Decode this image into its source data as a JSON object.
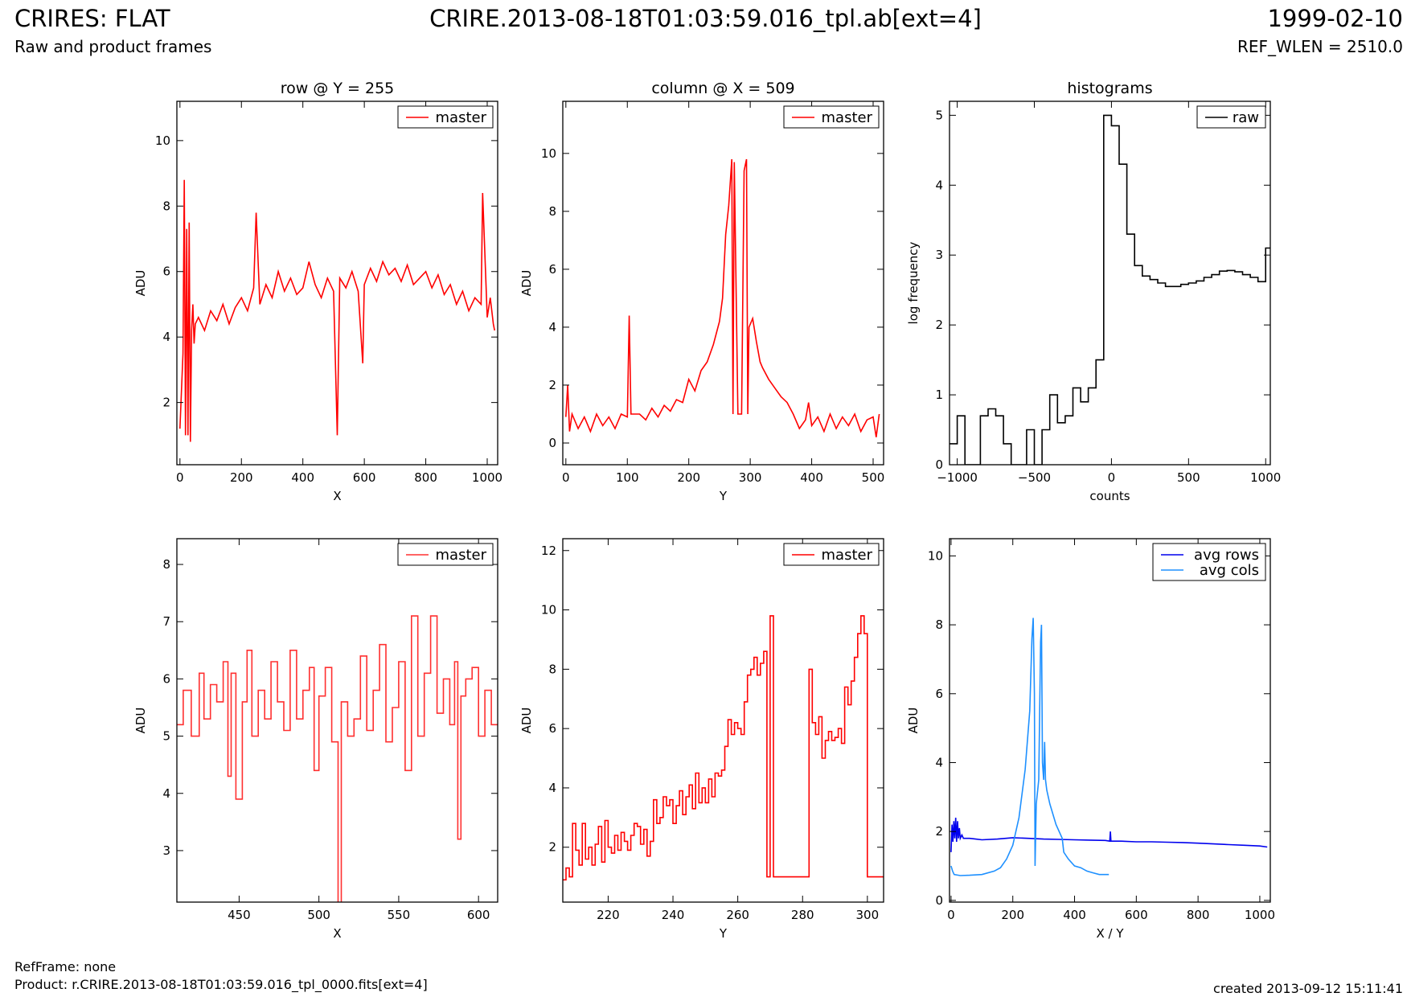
{
  "header": {
    "title": "CRIRES: FLAT",
    "subtitle": "Raw and product frames",
    "file": "CRIRE.2013-08-18T01:03:59.016_tpl.ab[ext=4]",
    "date": "1999-02-10",
    "ref_wlen": "REF_WLEN = 2510.0"
  },
  "footer": {
    "refframe": "RefFrame: none",
    "product": "Product: r.CRIRE.2013-08-18T01:03:59.016_tpl_0000.fits[ext=4]",
    "created": "created 2013-09-12 15:11:41"
  },
  "colors": {
    "master": "#ff0000",
    "master_light": "#ff3030",
    "raw": "#000000",
    "avg_rows": "#0000ee",
    "avg_cols": "#1e90ff"
  },
  "chart_data": [
    {
      "id": "row",
      "type": "line",
      "title": "row @ Y = 255",
      "xlabel": "X",
      "ylabel": "ADU",
      "xlim": [
        -10,
        1034
      ],
      "ylim": [
        0.1,
        11.2
      ],
      "xticks": [
        0,
        200,
        400,
        600,
        800,
        1000
      ],
      "yticks": [
        2,
        4,
        6,
        8,
        10
      ],
      "legend": {
        "position": "top-right",
        "entries": [
          {
            "label": "master",
            "color": "#ff0000"
          }
        ]
      },
      "series": [
        {
          "name": "master",
          "color": "#ff0000",
          "step": false,
          "x": [
            0,
            10,
            14,
            18,
            22,
            26,
            30,
            34,
            38,
            42,
            46,
            50,
            60,
            80,
            100,
            120,
            140,
            160,
            180,
            200,
            220,
            240,
            248,
            260,
            280,
            300,
            320,
            340,
            360,
            380,
            400,
            420,
            440,
            460,
            480,
            500,
            512,
            520,
            540,
            560,
            580,
            595,
            600,
            620,
            640,
            660,
            680,
            700,
            720,
            740,
            760,
            780,
            800,
            820,
            840,
            860,
            880,
            900,
            920,
            940,
            960,
            980,
            985,
            1000,
            1010,
            1020,
            1024
          ],
          "y": [
            1.2,
            3.5,
            8.8,
            1.0,
            7.3,
            1.0,
            7.5,
            0.8,
            4.2,
            5.0,
            3.8,
            4.4,
            4.6,
            4.2,
            4.8,
            4.5,
            5.0,
            4.4,
            4.9,
            5.2,
            4.8,
            5.5,
            7.8,
            5.0,
            5.6,
            5.2,
            6.0,
            5.4,
            5.8,
            5.3,
            5.5,
            6.3,
            5.6,
            5.2,
            5.8,
            5.4,
            1.0,
            5.8,
            5.5,
            6.0,
            5.4,
            3.2,
            5.6,
            6.1,
            5.7,
            6.3,
            5.9,
            6.1,
            5.7,
            6.2,
            5.6,
            5.8,
            6.0,
            5.5,
            5.9,
            5.3,
            5.6,
            5.0,
            5.4,
            4.8,
            5.2,
            5.0,
            8.4,
            4.6,
            5.2,
            4.4,
            4.2
          ]
        }
      ]
    },
    {
      "id": "col",
      "type": "line",
      "title": "column @ X = 509",
      "xlabel": "Y",
      "ylabel": "ADU",
      "xlim": [
        -5,
        517
      ],
      "ylim": [
        -0.75,
        11.8
      ],
      "xticks": [
        0,
        100,
        200,
        300,
        400,
        500
      ],
      "yticks": [
        0,
        2,
        4,
        6,
        8,
        10
      ],
      "legend": {
        "position": "top-right",
        "entries": [
          {
            "label": "master",
            "color": "#ff0000"
          }
        ]
      },
      "series": [
        {
          "name": "master",
          "color": "#ff0000",
          "step": false,
          "x": [
            0,
            3,
            6,
            10,
            20,
            30,
            40,
            50,
            60,
            70,
            80,
            90,
            100,
            103,
            106,
            110,
            120,
            130,
            140,
            150,
            160,
            170,
            180,
            190,
            200,
            210,
            220,
            230,
            240,
            250,
            255,
            260,
            265,
            270,
            272,
            274,
            280,
            286,
            290,
            294,
            296,
            298,
            304,
            310,
            316,
            320,
            330,
            340,
            350,
            360,
            370,
            380,
            390,
            395,
            400,
            410,
            420,
            430,
            440,
            450,
            460,
            470,
            480,
            490,
            500,
            505,
            510
          ],
          "y": [
            0.9,
            2.0,
            0.4,
            1.0,
            0.5,
            0.9,
            0.4,
            1.0,
            0.6,
            0.9,
            0.5,
            1.0,
            0.9,
            4.4,
            1.0,
            1.0,
            1.0,
            0.8,
            1.2,
            0.9,
            1.3,
            1.1,
            1.5,
            1.4,
            2.2,
            1.8,
            2.5,
            2.8,
            3.4,
            4.2,
            5.0,
            7.2,
            8.2,
            9.8,
            1.0,
            9.7,
            1.0,
            1.0,
            9.4,
            9.8,
            1.0,
            4.0,
            4.3,
            3.5,
            2.8,
            2.6,
            2.2,
            1.9,
            1.6,
            1.4,
            1.0,
            0.5,
            0.8,
            1.4,
            0.6,
            0.9,
            0.4,
            1.0,
            0.5,
            0.9,
            0.6,
            1.0,
            0.4,
            0.8,
            0.9,
            0.2,
            1.0
          ]
        }
      ]
    },
    {
      "id": "hist",
      "type": "line",
      "title": "histograms",
      "xlabel": "counts",
      "ylabel": "log frequency",
      "xlim": [
        -1050,
        1030
      ],
      "ylim": [
        0,
        5.2
      ],
      "xticks": [
        -1000,
        -500,
        0,
        500,
        1000
      ],
      "xtick_labels": [
        "−1000",
        "−500",
        "0",
        "500",
        "1000"
      ],
      "yticks": [
        0,
        1,
        2,
        3,
        4,
        5
      ],
      "legend": {
        "position": "top-right",
        "entries": [
          {
            "label": "raw",
            "color": "#000000"
          }
        ]
      },
      "series": [
        {
          "name": "raw",
          "color": "#000000",
          "step": true,
          "x": [
            -1050,
            -1000,
            -950,
            -900,
            -850,
            -800,
            -750,
            -700,
            -650,
            -600,
            -550,
            -500,
            -450,
            -400,
            -350,
            -300,
            -250,
            -200,
            -150,
            -100,
            -50,
            0,
            50,
            100,
            150,
            200,
            250,
            300,
            350,
            400,
            450,
            500,
            550,
            600,
            650,
            700,
            750,
            800,
            850,
            900,
            950,
            1000,
            1030
          ],
          "y": [
            0.3,
            0.7,
            0,
            0,
            0.7,
            0.8,
            0.7,
            0.3,
            0,
            0,
            0.5,
            0,
            0.5,
            1.0,
            0.6,
            0.7,
            1.1,
            0.9,
            1.1,
            1.5,
            5.0,
            4.85,
            4.3,
            3.3,
            2.85,
            2.7,
            2.65,
            2.6,
            2.55,
            2.55,
            2.58,
            2.6,
            2.63,
            2.68,
            2.72,
            2.77,
            2.78,
            2.76,
            2.72,
            2.68,
            2.62,
            3.1,
            3.1
          ]
        }
      ]
    },
    {
      "id": "row-zoom",
      "type": "line",
      "title": "",
      "xlabel": "X",
      "ylabel": "ADU",
      "xlim": [
        411,
        612
      ],
      "ylim": [
        2.1,
        8.45
      ],
      "xticks": [
        450,
        500,
        550,
        600
      ],
      "yticks": [
        3,
        4,
        5,
        6,
        7,
        8
      ],
      "legend": {
        "position": "top-right",
        "entries": [
          {
            "label": "master",
            "color": "#ff3030"
          }
        ]
      },
      "series": [
        {
          "name": "master",
          "color": "#ff3030",
          "step": true,
          "x": [
            411,
            415,
            420,
            425,
            428,
            432,
            436,
            440,
            443,
            445,
            448,
            452,
            455,
            458,
            462,
            466,
            470,
            474,
            478,
            482,
            486,
            490,
            494,
            497,
            500,
            504,
            508,
            512,
            514,
            518,
            522,
            526,
            530,
            534,
            538,
            542,
            546,
            550,
            554,
            558,
            562,
            566,
            570,
            574,
            578,
            582,
            585,
            587,
            589,
            592,
            596,
            600,
            604,
            608,
            612
          ],
          "y": [
            5.2,
            5.8,
            5.0,
            6.1,
            5.3,
            5.9,
            5.6,
            6.3,
            4.3,
            6.1,
            3.9,
            5.6,
            6.5,
            5.0,
            5.8,
            5.3,
            6.3,
            5.6,
            5.1,
            6.5,
            5.3,
            5.8,
            6.2,
            4.4,
            5.7,
            6.2,
            4.9,
            2.0,
            5.6,
            5.0,
            5.3,
            6.4,
            5.1,
            5.8,
            6.6,
            4.9,
            5.5,
            6.3,
            4.4,
            7.1,
            5.0,
            6.1,
            7.1,
            5.4,
            6.0,
            5.2,
            6.3,
            3.2,
            5.7,
            6.0,
            6.2,
            5.0,
            5.8,
            5.2,
            5.2
          ]
        }
      ]
    },
    {
      "id": "col-zoom",
      "type": "line",
      "title": "",
      "xlabel": "Y",
      "ylabel": "ADU",
      "xlim": [
        206,
        305
      ],
      "ylim": [
        0.15,
        12.4
      ],
      "xticks": [
        220,
        240,
        260,
        280,
        300
      ],
      "yticks": [
        2,
        4,
        6,
        8,
        10,
        12
      ],
      "legend": {
        "position": "top-right",
        "entries": [
          {
            "label": "master",
            "color": "#ff0000"
          }
        ]
      },
      "series": [
        {
          "name": "master",
          "color": "#ff0000",
          "step": true,
          "x": [
            206,
            207,
            208,
            209,
            210,
            211,
            212,
            213,
            214,
            215,
            216,
            217,
            218,
            219,
            220,
            221,
            222,
            223,
            224,
            225,
            226,
            227,
            228,
            229,
            230,
            231,
            232,
            233,
            234,
            235,
            236,
            237,
            238,
            239,
            240,
            241,
            242,
            243,
            244,
            245,
            246,
            247,
            248,
            249,
            250,
            251,
            252,
            253,
            254,
            255,
            256,
            257,
            258,
            259,
            260,
            261,
            262,
            263,
            264,
            265,
            266,
            267,
            268,
            269,
            270,
            271,
            272,
            273,
            274,
            275,
            276,
            277,
            278,
            279,
            280,
            281,
            282,
            283,
            284,
            285,
            286,
            287,
            288,
            289,
            290,
            291,
            292,
            293,
            294,
            295,
            296,
            297,
            298,
            299,
            300,
            301,
            302,
            303,
            304,
            305
          ],
          "y": [
            0.9,
            1.3,
            1.0,
            2.8,
            1.9,
            1.4,
            2.8,
            1.6,
            2.0,
            1.4,
            2.1,
            2.7,
            1.5,
            2.9,
            2.0,
            1.8,
            2.4,
            1.9,
            2.5,
            2.2,
            1.9,
            2.4,
            2.8,
            2.7,
            2.1,
            2.6,
            1.7,
            2.2,
            3.6,
            2.8,
            3.0,
            3.7,
            3.4,
            3.6,
            2.8,
            3.4,
            3.9,
            3.1,
            3.7,
            4.1,
            3.3,
            4.5,
            3.5,
            4.0,
            3.5,
            4.3,
            3.7,
            4.5,
            4.4,
            4.6,
            5.4,
            6.3,
            5.8,
            6.2,
            6.0,
            5.8,
            6.9,
            7.8,
            8.0,
            8.4,
            7.8,
            8.2,
            8.6,
            1.0,
            9.8,
            1.0,
            1.0,
            1.0,
            1.0,
            1.0,
            1.0,
            1.0,
            1.0,
            1.0,
            1.0,
            1.0,
            8.0,
            6.2,
            5.8,
            6.4,
            5.0,
            5.6,
            5.9,
            5.6,
            5.7,
            6.0,
            5.5,
            7.4,
            6.8,
            7.6,
            8.4,
            9.2,
            9.8,
            9.2,
            1.0,
            1.0,
            1.0,
            1.0,
            1.0,
            1.0
          ]
        }
      ]
    },
    {
      "id": "avg",
      "type": "line",
      "title": "",
      "xlabel": "X / Y",
      "ylabel": "ADU",
      "xlim": [
        -5,
        1034
      ],
      "ylim": [
        -0.05,
        10.5
      ],
      "xticks": [
        0,
        200,
        400,
        600,
        800,
        1000
      ],
      "yticks": [
        0,
        2,
        4,
        6,
        8,
        10
      ],
      "legend": {
        "position": "top-right",
        "entries": [
          {
            "label": "avg rows",
            "color": "#0000ee"
          },
          {
            "label": "avg cols",
            "color": "#1e90ff"
          }
        ]
      },
      "series": [
        {
          "name": "avg rows",
          "color": "#0000ee",
          "step": false,
          "x": [
            0,
            3,
            6,
            9,
            12,
            15,
            18,
            21,
            24,
            27,
            30,
            35,
            40,
            60,
            80,
            100,
            150,
            200,
            250,
            300,
            350,
            400,
            450,
            500,
            514,
            516,
            518,
            550,
            600,
            650,
            700,
            750,
            800,
            850,
            900,
            950,
            1000,
            1024
          ],
          "y": [
            1.4,
            2.2,
            1.7,
            2.3,
            1.8,
            2.4,
            1.7,
            2.3,
            1.8,
            2.1,
            1.8,
            1.9,
            1.8,
            1.8,
            1.78,
            1.76,
            1.78,
            1.82,
            1.8,
            1.78,
            1.77,
            1.76,
            1.75,
            1.74,
            1.72,
            2.0,
            1.72,
            1.72,
            1.7,
            1.7,
            1.69,
            1.68,
            1.66,
            1.64,
            1.62,
            1.6,
            1.58,
            1.55
          ]
        },
        {
          "name": "avg cols",
          "color": "#1e90ff",
          "step": false,
          "x": [
            0,
            5,
            10,
            30,
            60,
            100,
            140,
            160,
            180,
            200,
            220,
            240,
            255,
            262,
            266,
            270,
            272,
            276,
            284,
            290,
            293,
            296,
            300,
            303,
            306,
            310,
            320,
            340,
            360,
            365,
            380,
            400,
            420,
            440,
            460,
            480,
            511
          ],
          "y": [
            1.0,
            0.85,
            0.75,
            0.72,
            0.73,
            0.75,
            0.85,
            0.95,
            1.2,
            1.6,
            2.4,
            3.8,
            5.5,
            7.6,
            8.2,
            6.0,
            1.0,
            2.8,
            3.5,
            7.5,
            8.0,
            4.0,
            3.5,
            4.6,
            3.5,
            3.2,
            2.8,
            2.2,
            1.8,
            1.4,
            1.2,
            1.0,
            0.95,
            0.85,
            0.8,
            0.75,
            0.75
          ]
        }
      ]
    }
  ]
}
